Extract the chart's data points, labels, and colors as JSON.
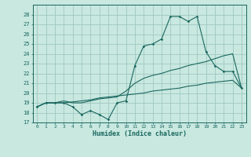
{
  "title": "",
  "xlabel": "Humidex (Indice chaleur)",
  "bg_color": "#c8e8e0",
  "grid_color": "#a0c8c0",
  "line_color": "#1a6860",
  "xlim": [
    -0.5,
    23.5
  ],
  "ylim": [
    17,
    29
  ],
  "yticks": [
    17,
    18,
    19,
    20,
    21,
    22,
    23,
    24,
    25,
    26,
    27,
    28
  ],
  "xticks": [
    0,
    1,
    2,
    3,
    4,
    5,
    6,
    7,
    8,
    9,
    10,
    11,
    12,
    13,
    14,
    15,
    16,
    17,
    18,
    19,
    20,
    21,
    22,
    23
  ],
  "line1_x": [
    0,
    1,
    2,
    3,
    4,
    5,
    6,
    7,
    8,
    9,
    10,
    11,
    12,
    13,
    14,
    15,
    16,
    17,
    18,
    19,
    20,
    21,
    22,
    23
  ],
  "line1_y": [
    18.6,
    19.0,
    19.0,
    19.0,
    18.6,
    17.8,
    18.2,
    17.8,
    17.3,
    19.0,
    19.2,
    22.8,
    24.8,
    25.0,
    25.5,
    27.8,
    27.8,
    27.3,
    27.8,
    24.2,
    22.8,
    22.2,
    22.2,
    20.5
  ],
  "line2_x": [
    0,
    1,
    2,
    3,
    4,
    5,
    6,
    7,
    8,
    9,
    10,
    11,
    12,
    13,
    14,
    15,
    16,
    17,
    18,
    19,
    20,
    21,
    22,
    23
  ],
  "line2_y": [
    18.6,
    19.0,
    19.0,
    19.2,
    19.0,
    19.0,
    19.2,
    19.4,
    19.5,
    19.6,
    20.2,
    21.0,
    21.5,
    21.8,
    22.0,
    22.3,
    22.5,
    22.8,
    23.0,
    23.2,
    23.5,
    23.8,
    24.0,
    20.5
  ],
  "line3_x": [
    0,
    1,
    2,
    3,
    4,
    5,
    6,
    7,
    8,
    9,
    10,
    11,
    12,
    13,
    14,
    15,
    16,
    17,
    18,
    19,
    20,
    21,
    22,
    23
  ],
  "line3_y": [
    18.6,
    19.0,
    19.0,
    19.0,
    19.1,
    19.2,
    19.3,
    19.5,
    19.6,
    19.7,
    19.8,
    19.9,
    20.0,
    20.2,
    20.3,
    20.4,
    20.5,
    20.7,
    20.8,
    21.0,
    21.1,
    21.2,
    21.3,
    20.5
  ]
}
